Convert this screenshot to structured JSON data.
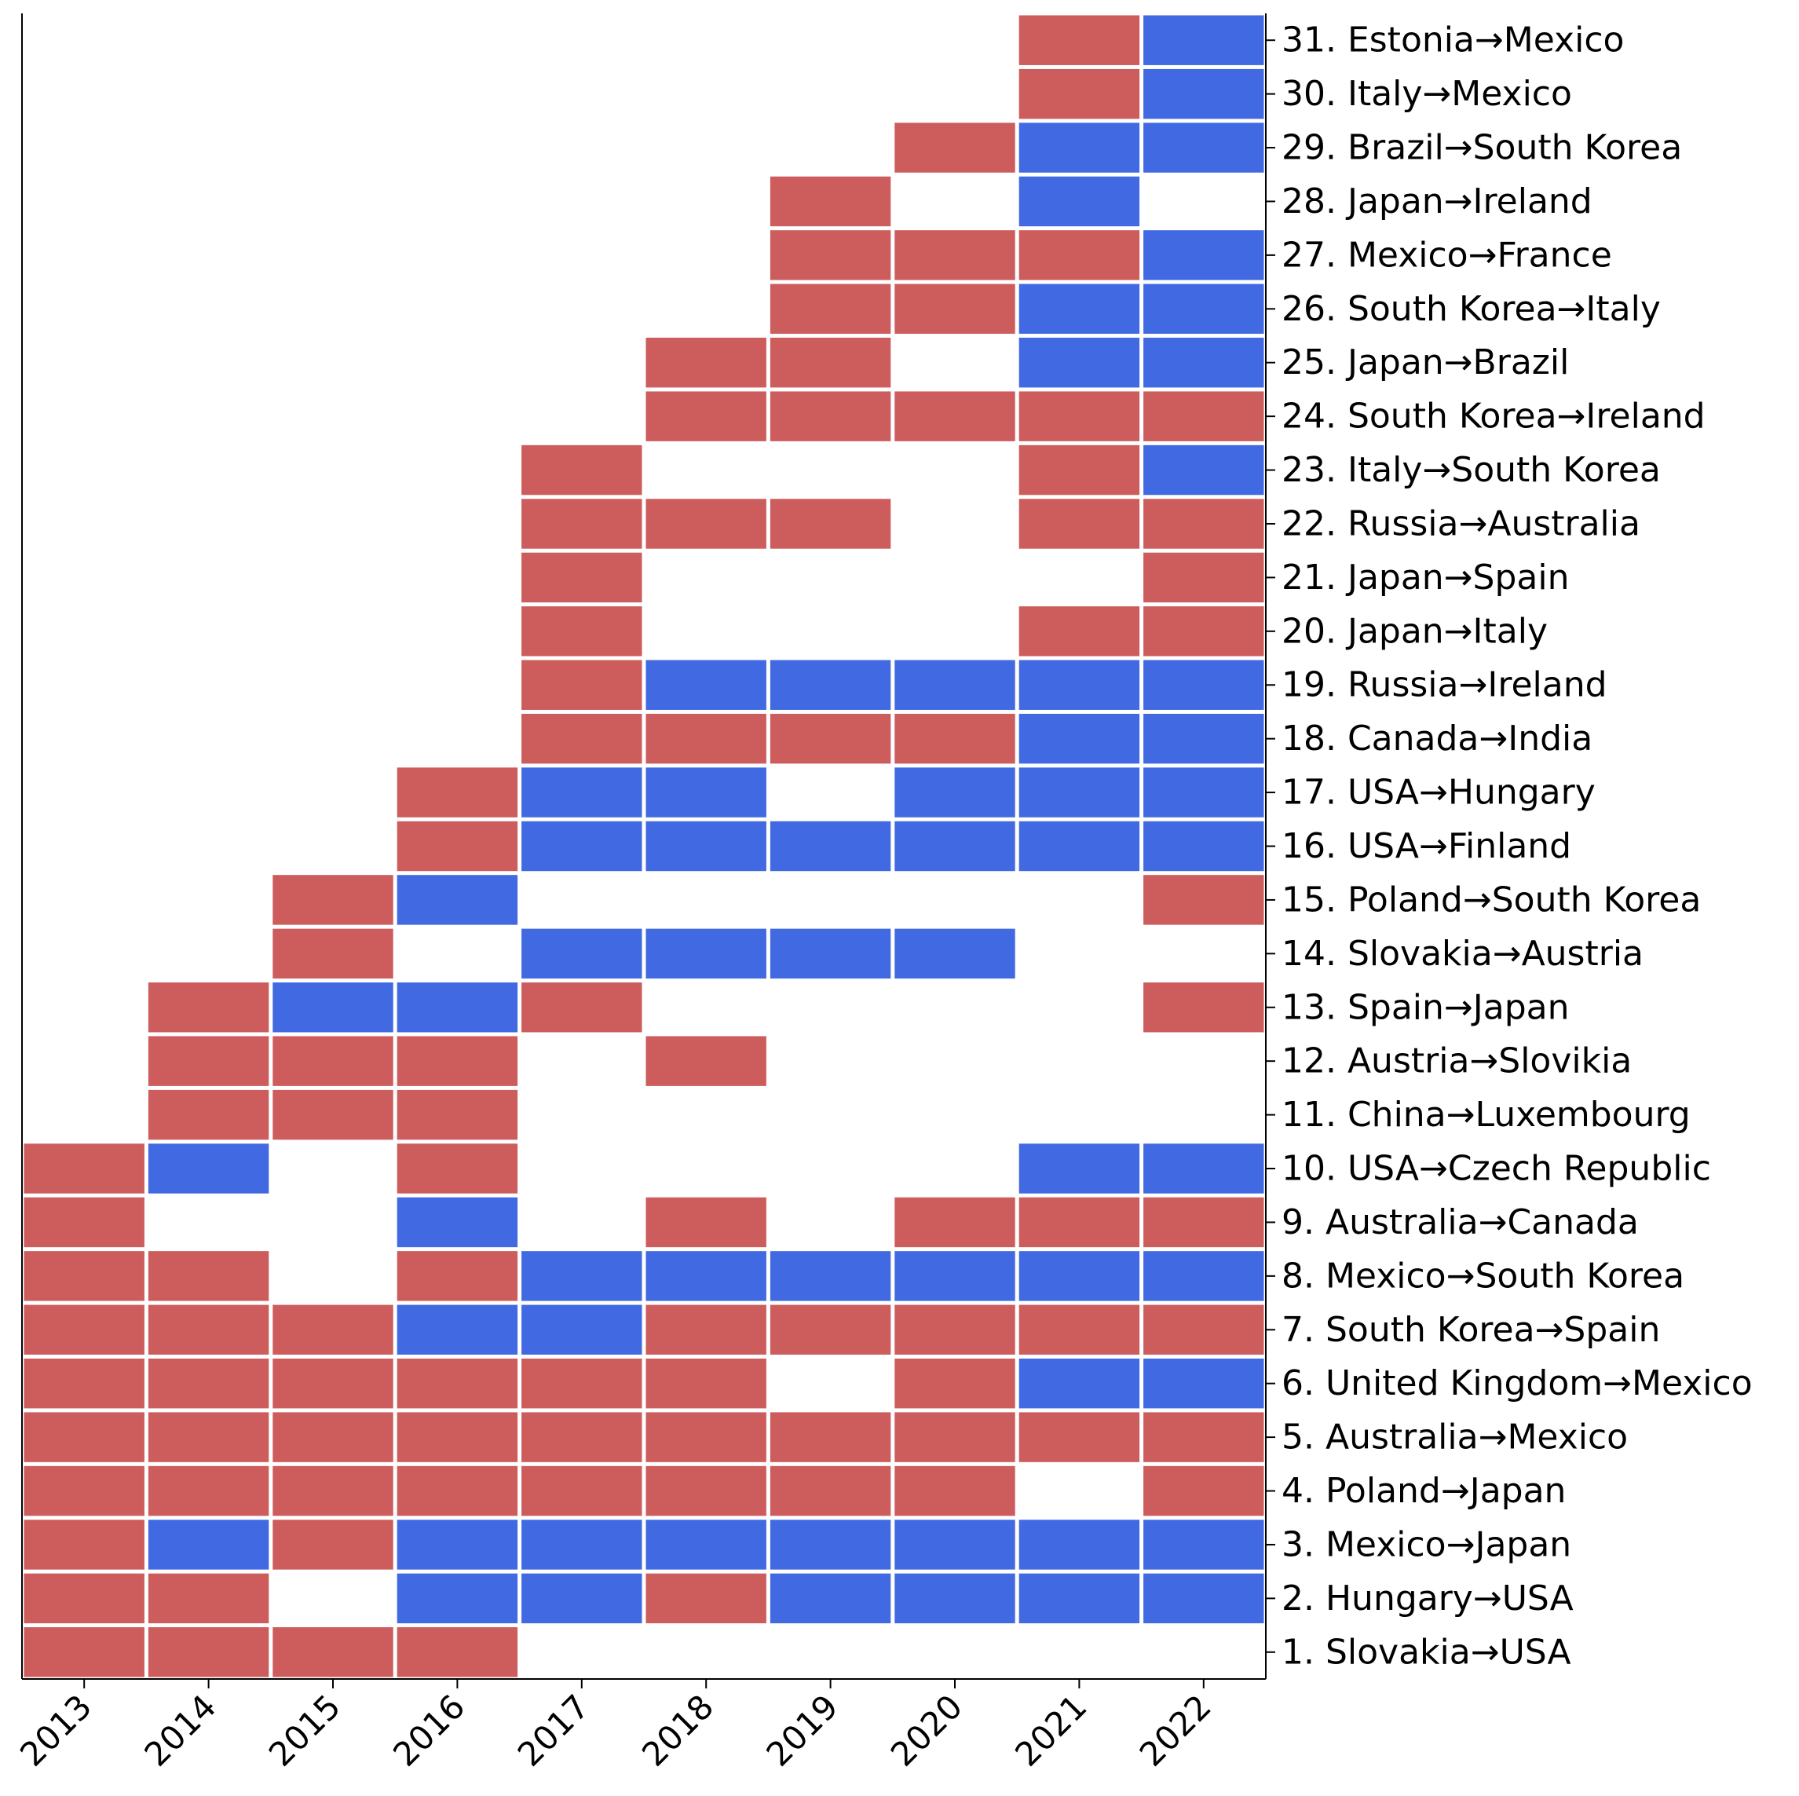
{
  "chart_data": {
    "type": "heatmap",
    "title": "",
    "xlabel": "",
    "ylabel": "",
    "colors": {
      "red": "#cd5c5c",
      "blue": "#4169e1",
      "grid": "#ffffff"
    },
    "x": [
      "2013",
      "2014",
      "2015",
      "2016",
      "2017",
      "2018",
      "2019",
      "2020",
      "2021",
      "2022"
    ],
    "rows": [
      {
        "label": "1. Slovakia→USA",
        "values": [
          "R",
          "R",
          "R",
          "R",
          "",
          "",
          "",
          "",
          "",
          ""
        ]
      },
      {
        "label": "2. Hungary→USA",
        "values": [
          "R",
          "R",
          "",
          "B",
          "B",
          "R",
          "B",
          "B",
          "B",
          "B"
        ]
      },
      {
        "label": "3. Mexico→Japan",
        "values": [
          "R",
          "B",
          "R",
          "B",
          "B",
          "B",
          "B",
          "B",
          "B",
          "B"
        ]
      },
      {
        "label": "4. Poland→Japan",
        "values": [
          "R",
          "R",
          "R",
          "R",
          "R",
          "R",
          "R",
          "R",
          "",
          "R"
        ]
      },
      {
        "label": "5. Australia→Mexico",
        "values": [
          "R",
          "R",
          "R",
          "R",
          "R",
          "R",
          "R",
          "R",
          "R",
          "R"
        ]
      },
      {
        "label": "6. United Kingdom→Mexico",
        "values": [
          "R",
          "R",
          "R",
          "R",
          "R",
          "R",
          "",
          "R",
          "B",
          "B"
        ]
      },
      {
        "label": "7. South Korea→Spain",
        "values": [
          "R",
          "R",
          "R",
          "B",
          "B",
          "R",
          "R",
          "R",
          "R",
          "R"
        ]
      },
      {
        "label": "8. Mexico→South Korea",
        "values": [
          "R",
          "R",
          "",
          "R",
          "B",
          "B",
          "B",
          "B",
          "B",
          "B"
        ]
      },
      {
        "label": "9. Australia→Canada",
        "values": [
          "R",
          "",
          "",
          "B",
          "",
          "R",
          "",
          "R",
          "R",
          "R"
        ]
      },
      {
        "label": "10. USA→Czech Republic",
        "values": [
          "R",
          "B",
          "",
          "R",
          "",
          "",
          "",
          "",
          "B",
          "B"
        ]
      },
      {
        "label": "11. China→Luxembourg",
        "values": [
          "",
          "R",
          "R",
          "R",
          "",
          "",
          "",
          "",
          "",
          ""
        ]
      },
      {
        "label": "12. Austria→Slovikia",
        "values": [
          "",
          "R",
          "R",
          "R",
          "",
          "R",
          "",
          "",
          "",
          ""
        ]
      },
      {
        "label": "13. Spain→Japan",
        "values": [
          "",
          "R",
          "B",
          "B",
          "R",
          "",
          "",
          "",
          "",
          "R"
        ]
      },
      {
        "label": "14. Slovakia→Austria",
        "values": [
          "",
          "",
          "R",
          "",
          "B",
          "B",
          "B",
          "B",
          "",
          ""
        ]
      },
      {
        "label": "15. Poland→South Korea",
        "values": [
          "",
          "",
          "R",
          "B",
          "",
          "",
          "",
          "",
          "",
          "R"
        ]
      },
      {
        "label": "16. USA→Finland",
        "values": [
          "",
          "",
          "",
          "R",
          "B",
          "B",
          "B",
          "B",
          "B",
          "B"
        ]
      },
      {
        "label": "17. USA→Hungary",
        "values": [
          "",
          "",
          "",
          "R",
          "B",
          "B",
          "",
          "B",
          "B",
          "B"
        ]
      },
      {
        "label": "18. Canada→India",
        "values": [
          "",
          "",
          "",
          "",
          "R",
          "R",
          "R",
          "R",
          "B",
          "B"
        ]
      },
      {
        "label": "19. Russia→Ireland",
        "values": [
          "",
          "",
          "",
          "",
          "R",
          "B",
          "B",
          "B",
          "B",
          "B"
        ]
      },
      {
        "label": "20. Japan→Italy",
        "values": [
          "",
          "",
          "",
          "",
          "R",
          "",
          "",
          "",
          "R",
          "R"
        ]
      },
      {
        "label": "21. Japan→Spain",
        "values": [
          "",
          "",
          "",
          "",
          "R",
          "",
          "",
          "",
          "",
          "R"
        ]
      },
      {
        "label": "22. Russia→Australia",
        "values": [
          "",
          "",
          "",
          "",
          "R",
          "R",
          "R",
          "",
          "R",
          "R"
        ]
      },
      {
        "label": "23. Italy→South Korea",
        "values": [
          "",
          "",
          "",
          "",
          "R",
          "",
          "",
          "",
          "R",
          "B"
        ]
      },
      {
        "label": "24. South Korea→Ireland",
        "values": [
          "",
          "",
          "",
          "",
          "",
          "R",
          "R",
          "R",
          "R",
          "R"
        ]
      },
      {
        "label": "25. Japan→Brazil",
        "values": [
          "",
          "",
          "",
          "",
          "",
          "R",
          "R",
          "",
          "B",
          "B"
        ]
      },
      {
        "label": "26. South Korea→Italy",
        "values": [
          "",
          "",
          "",
          "",
          "",
          "",
          "R",
          "R",
          "B",
          "B"
        ]
      },
      {
        "label": "27. Mexico→France",
        "values": [
          "",
          "",
          "",
          "",
          "",
          "",
          "R",
          "R",
          "R",
          "B"
        ]
      },
      {
        "label": "28. Japan→Ireland",
        "values": [
          "",
          "",
          "",
          "",
          "",
          "",
          "R",
          "",
          "B",
          ""
        ]
      },
      {
        "label": "29. Brazil→South Korea",
        "values": [
          "",
          "",
          "",
          "",
          "",
          "",
          "",
          "R",
          "B",
          "B"
        ]
      },
      {
        "label": "30. Italy→Mexico",
        "values": [
          "",
          "",
          "",
          "",
          "",
          "",
          "",
          "",
          "R",
          "B"
        ]
      },
      {
        "label": "31. Estonia→Mexico",
        "values": [
          "",
          "",
          "",
          "",
          "",
          "",
          "",
          "",
          "R",
          "B"
        ]
      }
    ]
  }
}
